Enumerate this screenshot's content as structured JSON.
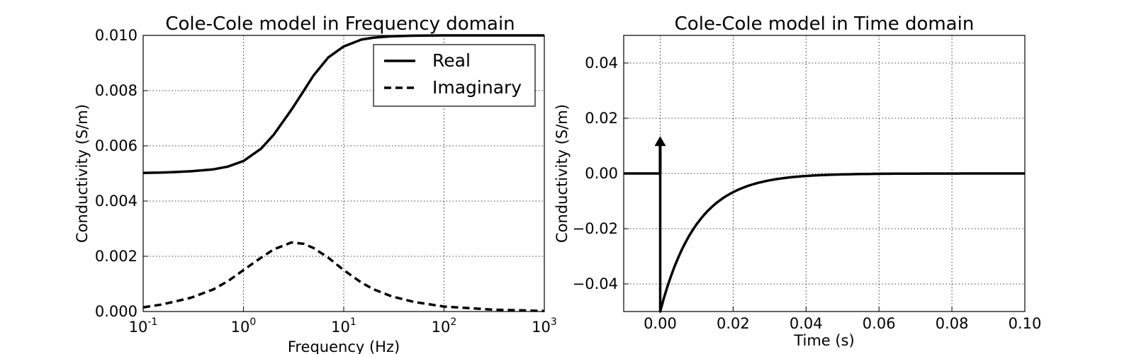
{
  "chart_data": [
    {
      "type": "line",
      "title": "Cole-Cole model in Frequency domain",
      "xlabel": "Frequency (Hz)",
      "ylabel": "Conductivity (S/m)",
      "xscale": "log",
      "xlim": [
        0.1,
        1000
      ],
      "ylim": [
        0.0,
        0.01
      ],
      "xticks": [
        {
          "value": 0.1,
          "base": "10",
          "exp": "-1"
        },
        {
          "value": 1,
          "base": "10",
          "exp": "0"
        },
        {
          "value": 10,
          "base": "10",
          "exp": "1"
        },
        {
          "value": 100,
          "base": "10",
          "exp": "2"
        },
        {
          "value": 1000,
          "base": "10",
          "exp": "3"
        }
      ],
      "yticks": [
        {
          "value": 0.0,
          "label": "0.000"
        },
        {
          "value": 0.002,
          "label": "0.002"
        },
        {
          "value": 0.004,
          "label": "0.004"
        },
        {
          "value": 0.006,
          "label": "0.006"
        },
        {
          "value": 0.008,
          "label": "0.008"
        },
        {
          "value": 0.01,
          "label": "0.010"
        }
      ],
      "grid": true,
      "legend": "top-right",
      "series": [
        {
          "name": "Real",
          "style": "solid",
          "x": [
            0.1,
            0.15,
            0.2,
            0.3,
            0.5,
            0.7,
            1,
            1.5,
            2,
            3,
            4,
            5,
            7,
            10,
            15,
            20,
            30,
            50,
            100,
            300,
            1000
          ],
          "y": [
            0.00502,
            0.00503,
            0.00505,
            0.00508,
            0.00515,
            0.00525,
            0.00545,
            0.0059,
            0.0064,
            0.0073,
            0.008,
            0.00855,
            0.0092,
            0.0096,
            0.00985,
            0.00992,
            0.00997,
            0.00999,
            0.01,
            0.01,
            0.01
          ]
        },
        {
          "name": "Imaginary",
          "style": "dashed",
          "x": [
            0.1,
            0.15,
            0.2,
            0.3,
            0.5,
            0.7,
            1,
            1.5,
            2,
            3,
            4,
            5,
            7,
            10,
            15,
            20,
            30,
            50,
            100,
            300,
            1000
          ],
          "y": [
            0.00015,
            0.00025,
            0.00035,
            0.0005,
            0.0008,
            0.0011,
            0.0015,
            0.00195,
            0.00225,
            0.0025,
            0.00245,
            0.0023,
            0.00195,
            0.0015,
            0.00105,
            0.0008,
            0.00055,
            0.00035,
            0.00018,
            7e-05,
            2e-05
          ]
        }
      ]
    },
    {
      "type": "line",
      "title": "Cole-Cole model in Time domain",
      "xlabel": "Time (s)",
      "ylabel": "Conductivity (S/m)",
      "xlim": [
        -0.01,
        0.1
      ],
      "ylim": [
        -0.05,
        0.05
      ],
      "xticks": [
        {
          "value": 0.0,
          "label": "0.00"
        },
        {
          "value": 0.02,
          "label": "0.02"
        },
        {
          "value": 0.04,
          "label": "0.04"
        },
        {
          "value": 0.06,
          "label": "0.06"
        },
        {
          "value": 0.08,
          "label": "0.08"
        },
        {
          "value": 0.1,
          "label": "0.10"
        }
      ],
      "yticks": [
        {
          "value": -0.04,
          "label": "−0.04"
        },
        {
          "value": -0.02,
          "label": "−0.02"
        },
        {
          "value": 0.0,
          "label": "0.00"
        },
        {
          "value": 0.02,
          "label": "0.02"
        },
        {
          "value": 0.04,
          "label": "0.04"
        }
      ],
      "grid": true,
      "annotations": [
        {
          "type": "arrow",
          "x": 0.0,
          "y_from": 0.0,
          "y_to": 0.013
        }
      ],
      "series": [
        {
          "style": "solid",
          "x": [
            -0.01,
            0.0,
            0.0,
            0.002,
            0.005,
            0.008,
            0.01,
            0.015,
            0.02,
            0.025,
            0.03,
            0.04,
            0.05,
            0.06,
            0.08,
            0.1
          ],
          "y": [
            0.0,
            0.0,
            -0.05,
            -0.0401,
            -0.0301,
            -0.0223,
            -0.0184,
            -0.0113,
            -0.0068,
            -0.0041,
            -0.0025,
            -0.0009,
            -0.0004,
            -0.0001,
            0.0,
            0.0
          ]
        }
      ]
    }
  ]
}
